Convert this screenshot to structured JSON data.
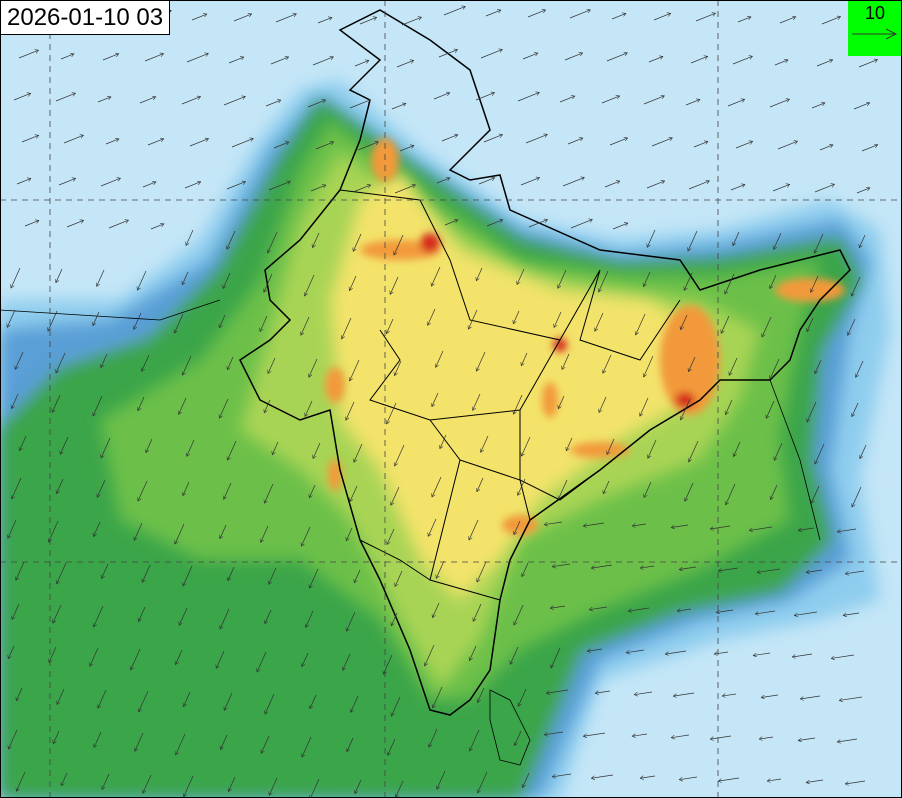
{
  "map": {
    "timestamp": "2026-01-10 03",
    "vector_legend": {
      "value": "10",
      "icon": "arrow-right-icon",
      "background": "#00ff00"
    },
    "colors": {
      "ocean": "#c4e6f7",
      "low": "#8fcdee",
      "mid_blue": "#5a9fd6",
      "green_dark": "#3aa54a",
      "green": "#6cc04a",
      "green_light": "#a8d455",
      "yellow": "#f3e36a",
      "orange": "#f29a3a",
      "red": "#d42a1c"
    }
  }
}
